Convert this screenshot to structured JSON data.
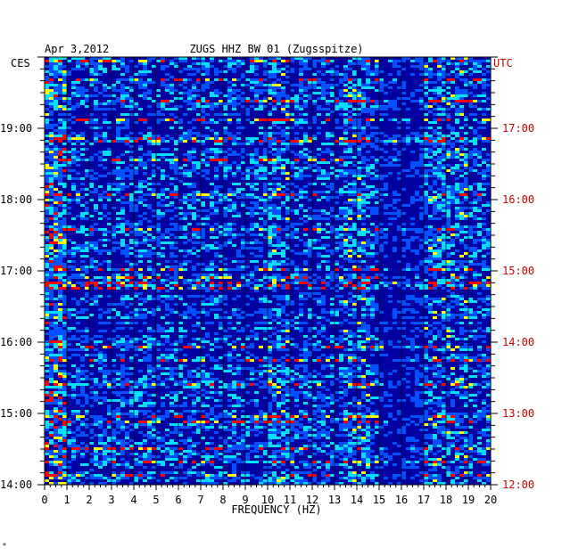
{
  "chart_data": {
    "type": "heatmap",
    "title": "ZUGS HHZ BW 01 (Zugsspitze)",
    "date": "Apr 3,2012",
    "xlabel": "FREQUENCY (HZ)",
    "x_ticks": [
      "0",
      "1",
      "2",
      "3",
      "4",
      "5",
      "6",
      "7",
      "8",
      "9",
      "10",
      "11",
      "12",
      "13",
      "14",
      "15",
      "16",
      "17",
      "18",
      "19",
      "20"
    ],
    "xlim": [
      0,
      20
    ],
    "left_timezone": "CES",
    "right_timezone": "UTC",
    "left_time_ticks": [
      {
        "label": "19:00",
        "hour": 19
      },
      {
        "label": "18:00",
        "hour": 18
      },
      {
        "label": "17:00",
        "hour": 17
      },
      {
        "label": "16:00",
        "hour": 16
      },
      {
        "label": "15:00",
        "hour": 15
      },
      {
        "label": "14:00",
        "hour": 14
      }
    ],
    "right_time_ticks": [
      {
        "label": "17:00",
        "hour": 17
      },
      {
        "label": "16:00",
        "hour": 16
      },
      {
        "label": "15:00",
        "hour": 15
      },
      {
        "label": "14:00",
        "hour": 14
      },
      {
        "label": "13:00",
        "hour": 13
      },
      {
        "label": "12:00",
        "hour": 12
      }
    ],
    "time_range_local_hours": [
      14,
      20
    ],
    "colors": {
      "background_low": "#0000a0",
      "mid": "#0050ff",
      "high": "#00e0ff",
      "peak": "#ffff00",
      "max": "#ff0000",
      "gridline": "#000000",
      "left_labels": "#000000",
      "right_labels": "#cc0000"
    },
    "energy_bands_hz": [
      {
        "range": [
          0,
          1
        ],
        "level": "high"
      },
      {
        "range": [
          10,
          11
        ],
        "level": "elevated"
      },
      {
        "range": [
          13.5,
          14.5
        ],
        "level": "elevated"
      },
      {
        "range": [
          17,
          19
        ],
        "level": "elevated"
      }
    ]
  },
  "footer_mark": "*"
}
